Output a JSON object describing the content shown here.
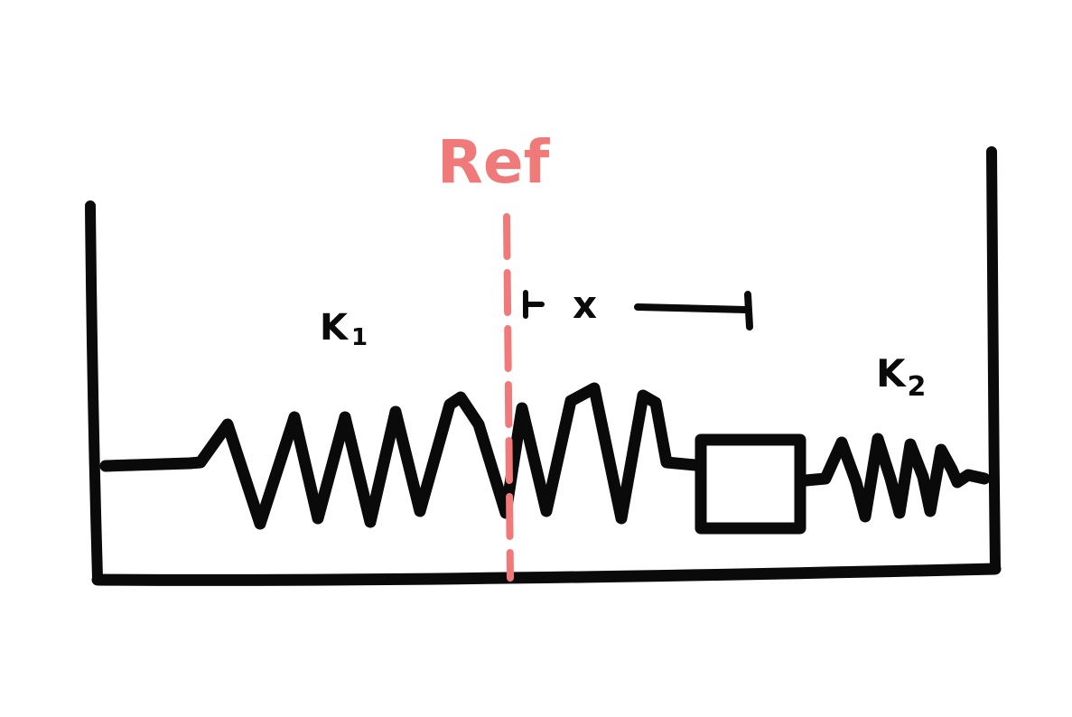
{
  "labels": {
    "ref": "Ref",
    "x": "x",
    "k1_letter": "K",
    "k1_sub": "1",
    "k2_letter": "K",
    "k2_sub": "2"
  },
  "colors": {
    "ink": "#0a0a0a",
    "reference": "#f07a7a",
    "background": "#ffffff"
  }
}
